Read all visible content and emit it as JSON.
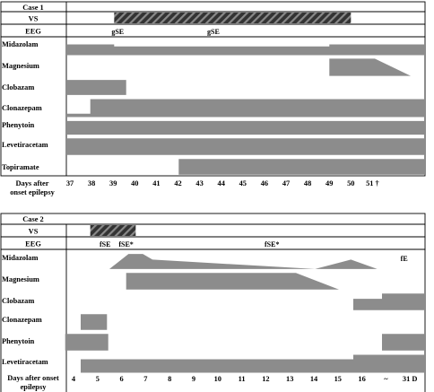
{
  "colors": {
    "bar": "#8c8c8c",
    "hatch_bg": "#333333",
    "hatch_line": "#8a8a8a",
    "line": "#000000"
  },
  "panels": [
    {
      "title": "Case 1",
      "vs_label": "VS",
      "eeg_label": "EEG",
      "axis_label": [
        "Days after",
        "onset epilepsy"
      ],
      "ticks": [
        "37",
        "38",
        "39",
        "40",
        "41",
        "42",
        "43",
        "44",
        "45",
        "46",
        "47",
        "48",
        "49",
        "50",
        "51 †"
      ],
      "vs_interval": [
        39,
        48.9
      ],
      "eeg_annotations": [
        {
          "text": "gSE",
          "x": 39
        },
        {
          "text": "gSE",
          "x": 43
        }
      ],
      "drugs": [
        {
          "name": "Midazolam",
          "segments": [
            [
              [
                37,
                0.1
              ],
              [
                39,
                0.1
              ],
              [
                39,
                0.25
              ],
              [
                48,
                0.25
              ],
              [
                48,
                0.1
              ],
              [
                52,
                0.1
              ],
              [
                52,
                0.9
              ],
              [
                37,
                0.9
              ]
            ]
          ]
        },
        {
          "name": "Magnesium",
          "segments": [
            [
              [
                48,
                0.1
              ],
              [
                49.9,
                0.1
              ],
              [
                51.4,
                0.9
              ],
              [
                48,
                0.9
              ]
            ]
          ]
        },
        {
          "name": "Clobazam",
          "segments": [
            [
              [
                37,
                0.1
              ],
              [
                39.5,
                0.1
              ],
              [
                39.5,
                0.9
              ],
              [
                37,
                0.9
              ]
            ]
          ]
        },
        {
          "name": "Clonazepam",
          "segments": [
            [
              [
                37,
                0.75
              ],
              [
                38,
                0.75
              ],
              [
                38,
                0.1
              ],
              [
                52,
                0.1
              ],
              [
                52,
                0.9
              ],
              [
                37,
                0.9
              ]
            ]
          ]
        },
        {
          "name": "Phenytoin",
          "segments": [
            [
              [
                37,
                0.1
              ],
              [
                52,
                0.1
              ],
              [
                52,
                0.9
              ],
              [
                37,
                0.9
              ]
            ]
          ]
        },
        {
          "name": "Levetiracetam",
          "segments": [
            [
              [
                37,
                0.1
              ],
              [
                52,
                0.1
              ],
              [
                52,
                0.9
              ],
              [
                37,
                0.9
              ]
            ]
          ]
        },
        {
          "name": "Topiramate",
          "segments": [
            [
              [
                41.7,
                0.1
              ],
              [
                52,
                0.1
              ],
              [
                52,
                0.9
              ],
              [
                41.7,
                0.9
              ]
            ]
          ]
        }
      ]
    },
    {
      "title": "Case 2",
      "vs_label": "VS",
      "eeg_label": "EEG",
      "axis_label": [
        "Days after onset",
        "epilepsy"
      ],
      "ticks": [
        "4",
        "5",
        "6",
        "7",
        "8",
        "9",
        "10",
        "11",
        "12",
        "13",
        "14",
        "15",
        "16",
        "~",
        "31 D"
      ],
      "vs_interval": [
        5,
        6.9
      ],
      "eeg_annotations": [
        {
          "text": "fSE",
          "x": 5.5
        },
        {
          "text": "fSE*",
          "x": 6.3
        },
        {
          "text": "fSE*",
          "x": 12.4
        }
      ],
      "midazolam_extra_label": {
        "text": "fE",
        "x": 18.5
      },
      "drugs": [
        {
          "name": "Midazolam",
          "segments": [
            [
              [
                5.8,
                0.9
              ],
              [
                6.6,
                0.1
              ],
              [
                7.2,
                0.1
              ],
              [
                7.6,
                0.4
              ],
              [
                14.4,
                0.9
              ]
            ],
            [
              [
                14.4,
                0.9
              ],
              [
                15.9,
                0.4
              ],
              [
                17.0,
                0.9
              ]
            ]
          ]
        },
        {
          "name": "Magnesium",
          "segments": [
            [
              [
                6.5,
                0.1
              ],
              [
                13.6,
                0.1
              ],
              [
                15.4,
                0.9
              ],
              [
                6.5,
                0.9
              ]
            ]
          ]
        },
        {
          "name": "Clobazam",
          "segments": [
            [
              [
                16.0,
                0.35
              ],
              [
                17.2,
                0.35
              ],
              [
                17.2,
                0.1
              ],
              [
                19.0,
                0.1
              ],
              [
                19.0,
                0.9
              ],
              [
                16.0,
                0.9
              ]
            ]
          ]
        },
        {
          "name": "Clonazepam",
          "segments": [
            [
              [
                4.6,
                0.1
              ],
              [
                5.7,
                0.1
              ],
              [
                5.7,
                0.9
              ],
              [
                4.6,
                0.9
              ]
            ]
          ]
        },
        {
          "name": "Phenytoin",
          "segments": [
            [
              [
                3.95,
                0.1
              ],
              [
                5.75,
                0.1
              ],
              [
                5.75,
                0.9
              ],
              [
                3.95,
                0.9
              ]
            ],
            [
              [
                17.2,
                0.1
              ],
              [
                19.0,
                0.1
              ],
              [
                19.0,
                0.9
              ],
              [
                17.2,
                0.9
              ]
            ]
          ]
        },
        {
          "name": "Levetiracetam",
          "segments": [
            [
              [
                4.6,
                0.3
              ],
              [
                16.0,
                0.3
              ],
              [
                16.0,
                0.1
              ],
              [
                19.0,
                0.1
              ],
              [
                19.0,
                0.9
              ],
              [
                4.6,
                0.9
              ]
            ]
          ]
        }
      ]
    }
  ]
}
